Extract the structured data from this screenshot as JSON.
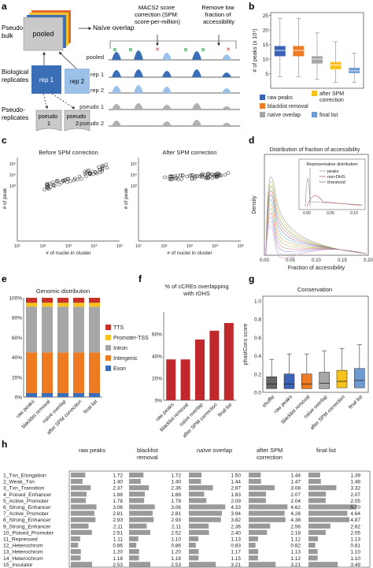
{
  "panels": {
    "a": "a",
    "b": "b",
    "c": "c",
    "d": "d",
    "e": "e",
    "f": "f",
    "g": "g",
    "h": "h"
  },
  "panel_a": {
    "pseudo_bulk": "Pseudo-\nbulk",
    "pooled": "pooled",
    "bio_reps": "Biological\nreplicates",
    "rep1": "rep 1",
    "rep2": "rep 2",
    "pseudo_reps": "Pseudo-\nreplicates",
    "pseudo1": "pseudo\n1",
    "pseudo2": "pseudo\n2",
    "naive_overlap": "Naïve overlap",
    "macs2": "MACS2 score\ncorrection (SPM:\nscore-per-million)",
    "remove_low": "Remove low\nfraction of\naccessibility",
    "track_labels": [
      "pooled",
      "rep 1",
      "rep 2",
      "pseudo 1",
      "pseudo 2"
    ]
  },
  "colors": {
    "raw_peaks": "#3a63b8",
    "blacklist": "#ee7a22",
    "naive": "#a6a6a6",
    "after_spm": "#f7c21b",
    "final": "#6b9bd1",
    "exon": "#3a6fb8",
    "intergenic": "#ee7a22",
    "intron": "#a6a6a6",
    "promoter": "#f7c21b",
    "tts": "#c8312a",
    "bar_red": "#c0282b",
    "grey_bar": "#9a9a9a",
    "check": "#2aa84a",
    "cross": "#d02b2b"
  },
  "chart_b": {
    "ylabel": "# of peaks (x 10⁴)",
    "yticks": [
      "5",
      "10",
      "15",
      "20",
      "25"
    ],
    "legend": [
      "raw peaks",
      "blacklist removal",
      "naïve overlap",
      "after SPM correction",
      "final list"
    ],
    "boxes": [
      {
        "whislo": 4,
        "q1": 11,
        "med": 13,
        "q3": 14.5,
        "whishi": 24
      },
      {
        "whislo": 4,
        "q1": 11,
        "med": 13,
        "q3": 14.5,
        "whishi": 24
      },
      {
        "whislo": 3,
        "q1": 8.5,
        "med": 10,
        "q3": 11,
        "whishi": 19
      },
      {
        "whislo": 2,
        "q1": 6.5,
        "med": 8,
        "q3": 9,
        "whishi": 16
      },
      {
        "whislo": 2,
        "q1": 5.2,
        "med": 6,
        "q3": 7,
        "whishi": 12
      }
    ],
    "ylim": [
      0,
      26
    ]
  },
  "chart_c": {
    "titles": [
      "Before SPM correction",
      "After SPM correction"
    ],
    "ylabel": "# of peak",
    "xlabel": "# of nuclei in cluster",
    "yticks": [
      "10³",
      "10⁴",
      "10⁵"
    ],
    "xticks": [
      "10¹",
      "10²",
      "10³",
      "10⁴",
      "10⁵"
    ]
  },
  "chart_d": {
    "title": "Distribution of fraction of accessibility",
    "ylabel": "Density",
    "xlabel": "Fraction of accessibility",
    "xticks": [
      "0.00",
      "0.05",
      "0.10",
      "0.15",
      "0.20"
    ],
    "inset_title": "Representative distribution",
    "inset_legend": [
      "peaks",
      "non-DHS",
      "threshold"
    ],
    "inset_xticks": [
      "0.00",
      "0.05",
      "0.10"
    ]
  },
  "chart_e": {
    "title": "Genomic distribution",
    "yticks": [
      "0%",
      "20%",
      "40%",
      "60%",
      "80%",
      "100%"
    ],
    "categories": [
      "raw peaks",
      "blacklist removal",
      "naïve overlap",
      "after SPM correction",
      "final list"
    ],
    "legend": [
      "TTS",
      "Promoter-TSS",
      "Intron",
      "Intergenic",
      "Exon"
    ],
    "series": [
      {
        "name": "Exon",
        "values": [
          4,
          4,
          4,
          4,
          4
        ]
      },
      {
        "name": "Intergenic",
        "values": [
          41,
          41,
          41,
          41,
          41
        ]
      },
      {
        "name": "Intron",
        "values": [
          46,
          46,
          46,
          46,
          46
        ]
      },
      {
        "name": "Promoter-TSS",
        "values": [
          4,
          4,
          4,
          4,
          4
        ]
      },
      {
        "name": "TTS",
        "values": [
          5,
          5,
          5,
          5,
          5
        ]
      }
    ]
  },
  "chart_f": {
    "title": "% of cCREs overlapping\nwith rDHS",
    "yticks": [
      "0%",
      "20%",
      "40%",
      "60%"
    ],
    "categories": [
      "raw peaks",
      "blacklist removal",
      "naïve overlap",
      "after SPM correction",
      "final list"
    ],
    "values": [
      37,
      37,
      55,
      63,
      70
    ],
    "ylim": [
      0,
      80
    ]
  },
  "chart_g": {
    "title": "Conservation",
    "ylabel": "phastCons score",
    "yticks": [
      "0.0",
      "0.2",
      "0.4",
      "0.6",
      "0.8",
      "1.0"
    ],
    "categories": [
      "shuffle",
      "raw peaks",
      "blacklist removal",
      "naïve overlap",
      "after SPM correction",
      "final list"
    ],
    "boxes": [
      {
        "whislo": 0,
        "q1": 0.04,
        "med": 0.09,
        "q3": 0.17,
        "whishi": 0.36
      },
      {
        "whislo": 0,
        "q1": 0.04,
        "med": 0.09,
        "q3": 0.2,
        "whishi": 0.42
      },
      {
        "whislo": 0,
        "q1": 0.04,
        "med": 0.09,
        "q3": 0.2,
        "whishi": 0.42
      },
      {
        "whislo": 0,
        "q1": 0.04,
        "med": 0.1,
        "q3": 0.22,
        "whishi": 0.45
      },
      {
        "whislo": 0,
        "q1": 0.05,
        "med": 0.12,
        "q3": 0.24,
        "whishi": 0.48
      },
      {
        "whislo": 0,
        "q1": 0.05,
        "med": 0.13,
        "q3": 0.26,
        "whishi": 0.52
      }
    ],
    "ylim": [
      0,
      1.05
    ]
  },
  "table_h": {
    "columns": [
      "raw peaks",
      "blacklist\nremoval",
      "naïve overlap",
      "after SPM\ncorrection",
      "final list"
    ],
    "rows": [
      {
        "label": "1_Txn_Elongation",
        "values": [
          "1.72",
          "1.72",
          "1.50",
          "1.44",
          "1.39"
        ]
      },
      {
        "label": "2_Weak_Txn",
        "values": [
          "1.40",
          "1.40",
          "1.44",
          "1.47",
          "1.48"
        ]
      },
      {
        "label": "3_Txn_Transition",
        "values": [
          "2.37",
          "2.36",
          "2.87",
          "3.08",
          "3.32"
        ]
      },
      {
        "label": "4_Poised_Enhancer",
        "values": [
          "1.88",
          "1.88",
          "1.83",
          "2.07",
          "2.07"
        ]
      },
      {
        "label": "5_Active_Promoter",
        "values": [
          "1.78",
          "1.79",
          "2.09",
          "2.04",
          "2.05"
        ]
      },
      {
        "label": "6_Strong_Enhancer",
        "values": [
          "3.06",
          "3.06",
          "4.33",
          "4.62",
          "5.70"
        ]
      },
      {
        "label": "7_Active_Promoter",
        "values": [
          "2.81",
          "2.81",
          "3.94",
          "4.28",
          "4.64"
        ]
      },
      {
        "label": "8_Strong_Enhancer",
        "values": [
          "2.93",
          "2.93",
          "3.82",
          "4.38",
          "4.87"
        ]
      },
      {
        "label": "9_Strong_Enhancer",
        "values": [
          "2.11",
          "2.11",
          "2.36",
          "2.56",
          "2.62"
        ]
      },
      {
        "label": "10_Poised_Promoter",
        "values": [
          "2.51",
          "2.52",
          "2.40",
          "2.18",
          "2.05"
        ]
      },
      {
        "label": "11_Repressed",
        "values": [
          "1.11",
          "1.10",
          "1.13",
          "1.12",
          "1.13"
        ]
      },
      {
        "label": "12_Heterochrom",
        "values": [
          "0.86",
          "0.86",
          "0.83",
          "0.82",
          "0.81"
        ]
      },
      {
        "label": "13_Heterochrom",
        "values": [
          "1.20",
          "1.20",
          "1.17",
          "1.13",
          "1.10"
        ]
      },
      {
        "label": "14_Heterochrom",
        "values": [
          "1.18",
          "1.18",
          "1.15",
          "1.12",
          "1.10"
        ]
      },
      {
        "label": "15_Insulator",
        "values": [
          "2.53",
          "2.53",
          "3.21",
          "3.21",
          "3.49"
        ]
      }
    ],
    "max_value": 6
  }
}
